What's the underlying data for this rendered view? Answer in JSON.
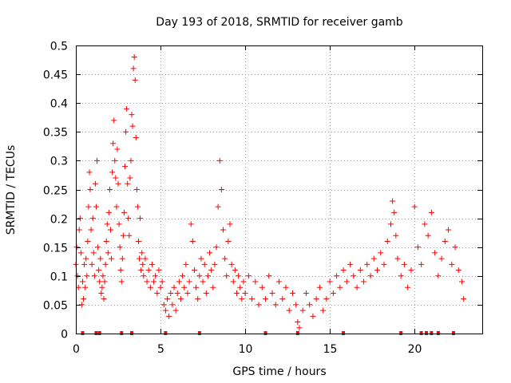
{
  "chart_data": {
    "type": "scatter",
    "title": "Day 193 of 2018, SRMTID for receiver gamb",
    "xlabel": "GPS time / hours",
    "ylabel": "SRMTID / TECUs",
    "xlim": [
      0,
      24
    ],
    "ylim": [
      0,
      0.5
    ],
    "grid": true,
    "x_ticks": [
      0,
      5,
      10,
      15,
      20
    ],
    "x_tick_labels": [
      "0",
      "5",
      "10",
      "15",
      "20"
    ],
    "y_ticks": [
      0,
      0.05,
      0.1,
      0.15,
      0.2,
      0.25,
      0.3,
      0.35,
      0.4,
      0.45,
      0.5
    ],
    "y_tick_labels": [
      "0",
      "0.05",
      "0.1",
      "0.15",
      "0.2",
      "0.25",
      "0.3",
      "0.35",
      "0.4",
      "0.45",
      "0.5"
    ],
    "series": [
      {
        "name": "SRMTID",
        "color": "#ff0000",
        "marker": "plus",
        "points": [
          [
            0.0,
            0.12
          ],
          [
            0.05,
            0.15
          ],
          [
            0.1,
            0.1
          ],
          [
            0.15,
            0.08
          ],
          [
            0.2,
            0.18
          ],
          [
            0.25,
            0.2
          ],
          [
            0.3,
            0.14
          ],
          [
            0.35,
            0.05
          ],
          [
            0.4,
            0.09
          ],
          [
            0.45,
            0.06
          ],
          [
            0.5,
            0.12
          ],
          [
            0.55,
            0.08
          ],
          [
            0.6,
            0.13
          ],
          [
            0.65,
            0.1
          ],
          [
            0.7,
            0.16
          ],
          [
            0.75,
            0.22
          ],
          [
            0.8,
            0.28
          ],
          [
            0.85,
            0.25
          ],
          [
            0.9,
            0.18
          ],
          [
            0.95,
            0.12
          ],
          [
            1.0,
            0.2
          ],
          [
            1.05,
            0.14
          ],
          [
            1.1,
            0.1
          ],
          [
            1.15,
            0.26
          ],
          [
            1.2,
            0.22
          ],
          [
            1.25,
            0.3
          ],
          [
            1.3,
            0.15
          ],
          [
            1.35,
            0.11
          ],
          [
            1.4,
            0.09
          ],
          [
            1.45,
            0.13
          ],
          [
            1.5,
            0.07
          ],
          [
            1.55,
            0.08
          ],
          [
            1.6,
            0.1
          ],
          [
            1.65,
            0.06
          ],
          [
            1.7,
            0.09
          ],
          [
            1.75,
            0.12
          ],
          [
            1.8,
            0.16
          ],
          [
            1.85,
            0.19
          ],
          [
            1.9,
            0.14
          ],
          [
            1.95,
            0.21
          ],
          [
            2.0,
            0.25
          ],
          [
            2.05,
            0.18
          ],
          [
            2.1,
            0.13
          ],
          [
            2.15,
            0.28
          ],
          [
            2.2,
            0.33
          ],
          [
            2.25,
            0.37
          ],
          [
            2.3,
            0.3
          ],
          [
            2.35,
            0.27
          ],
          [
            2.4,
            0.22
          ],
          [
            2.45,
            0.32
          ],
          [
            2.5,
            0.26
          ],
          [
            2.55,
            0.19
          ],
          [
            2.6,
            0.15
          ],
          [
            2.65,
            0.11
          ],
          [
            2.7,
            0.09
          ],
          [
            2.75,
            0.13
          ],
          [
            2.8,
            0.17
          ],
          [
            2.85,
            0.21
          ],
          [
            2.9,
            0.29
          ],
          [
            2.95,
            0.35
          ],
          [
            3.0,
            0.39
          ],
          [
            3.05,
            0.26
          ],
          [
            3.1,
            0.2
          ],
          [
            3.15,
            0.17
          ],
          [
            3.2,
            0.27
          ],
          [
            3.25,
            0.3
          ],
          [
            3.3,
            0.38
          ],
          [
            3.35,
            0.36
          ],
          [
            3.4,
            0.46
          ],
          [
            3.45,
            0.48
          ],
          [
            3.5,
            0.44
          ],
          [
            3.55,
            0.34
          ],
          [
            3.6,
            0.25
          ],
          [
            3.65,
            0.22
          ],
          [
            3.7,
            0.16
          ],
          [
            3.75,
            0.13
          ],
          [
            3.8,
            0.2
          ],
          [
            3.85,
            0.11
          ],
          [
            3.9,
            0.14
          ],
          [
            3.95,
            0.12
          ],
          [
            4.0,
            0.1
          ],
          [
            4.1,
            0.13
          ],
          [
            4.2,
            0.09
          ],
          [
            4.3,
            0.11
          ],
          [
            4.4,
            0.08
          ],
          [
            4.5,
            0.12
          ],
          [
            4.6,
            0.09
          ],
          [
            4.7,
            0.1
          ],
          [
            4.8,
            0.07
          ],
          [
            4.9,
            0.11
          ],
          [
            5.0,
            0.08
          ],
          [
            5.1,
            0.09
          ],
          [
            5.2,
            0.05
          ],
          [
            5.3,
            0.04
          ],
          [
            5.4,
            0.06
          ],
          [
            5.5,
            0.03
          ],
          [
            5.6,
            0.07
          ],
          [
            5.7,
            0.05
          ],
          [
            5.8,
            0.08
          ],
          [
            5.9,
            0.04
          ],
          [
            6.0,
            0.07
          ],
          [
            6.1,
            0.09
          ],
          [
            6.2,
            0.06
          ],
          [
            6.3,
            0.1
          ],
          [
            6.4,
            0.08
          ],
          [
            6.5,
            0.12
          ],
          [
            6.6,
            0.07
          ],
          [
            6.7,
            0.09
          ],
          [
            6.8,
            0.19
          ],
          [
            6.9,
            0.16
          ],
          [
            7.0,
            0.11
          ],
          [
            7.1,
            0.08
          ],
          [
            7.2,
            0.06
          ],
          [
            7.3,
            0.1
          ],
          [
            7.4,
            0.13
          ],
          [
            7.5,
            0.09
          ],
          [
            7.6,
            0.12
          ],
          [
            7.7,
            0.07
          ],
          [
            7.8,
            0.1
          ],
          [
            7.9,
            0.14
          ],
          [
            8.0,
            0.11
          ],
          [
            8.1,
            0.08
          ],
          [
            8.2,
            0.12
          ],
          [
            8.3,
            0.15
          ],
          [
            8.4,
            0.22
          ],
          [
            8.5,
            0.3
          ],
          [
            8.6,
            0.25
          ],
          [
            8.7,
            0.18
          ],
          [
            8.8,
            0.13
          ],
          [
            8.9,
            0.1
          ],
          [
            9.0,
            0.16
          ],
          [
            9.1,
            0.19
          ],
          [
            9.2,
            0.12
          ],
          [
            9.3,
            0.09
          ],
          [
            9.4,
            0.11
          ],
          [
            9.5,
            0.07
          ],
          [
            9.6,
            0.1
          ],
          [
            9.7,
            0.08
          ],
          [
            9.8,
            0.06
          ],
          [
            9.9,
            0.09
          ],
          [
            10.0,
            0.07
          ],
          [
            10.2,
            0.1
          ],
          [
            10.4,
            0.06
          ],
          [
            10.6,
            0.09
          ],
          [
            10.8,
            0.05
          ],
          [
            11.0,
            0.08
          ],
          [
            11.2,
            0.06
          ],
          [
            11.4,
            0.1
          ],
          [
            11.6,
            0.07
          ],
          [
            11.8,
            0.05
          ],
          [
            12.0,
            0.09
          ],
          [
            12.2,
            0.06
          ],
          [
            12.4,
            0.08
          ],
          [
            12.6,
            0.04
          ],
          [
            12.8,
            0.07
          ],
          [
            13.0,
            0.05
          ],
          [
            13.1,
            0.02
          ],
          [
            13.2,
            0.01
          ],
          [
            13.4,
            0.04
          ],
          [
            13.6,
            0.07
          ],
          [
            13.8,
            0.05
          ],
          [
            14.0,
            0.03
          ],
          [
            14.2,
            0.06
          ],
          [
            14.4,
            0.08
          ],
          [
            14.6,
            0.04
          ],
          [
            14.8,
            0.06
          ],
          [
            15.0,
            0.09
          ],
          [
            15.2,
            0.07
          ],
          [
            15.4,
            0.1
          ],
          [
            15.6,
            0.08
          ],
          [
            15.8,
            0.11
          ],
          [
            16.0,
            0.09
          ],
          [
            16.2,
            0.12
          ],
          [
            16.4,
            0.1
          ],
          [
            16.6,
            0.08
          ],
          [
            16.8,
            0.11
          ],
          [
            17.0,
            0.09
          ],
          [
            17.2,
            0.12
          ],
          [
            17.4,
            0.1
          ],
          [
            17.6,
            0.13
          ],
          [
            17.8,
            0.11
          ],
          [
            18.0,
            0.14
          ],
          [
            18.2,
            0.12
          ],
          [
            18.4,
            0.16
          ],
          [
            18.6,
            0.19
          ],
          [
            18.7,
            0.23
          ],
          [
            18.8,
            0.21
          ],
          [
            18.9,
            0.17
          ],
          [
            19.0,
            0.13
          ],
          [
            19.2,
            0.1
          ],
          [
            19.4,
            0.12
          ],
          [
            19.6,
            0.08
          ],
          [
            19.8,
            0.11
          ],
          [
            20.0,
            0.22
          ],
          [
            20.2,
            0.15
          ],
          [
            20.4,
            0.12
          ],
          [
            20.6,
            0.19
          ],
          [
            20.8,
            0.17
          ],
          [
            21.0,
            0.21
          ],
          [
            21.2,
            0.14
          ],
          [
            21.4,
            0.1
          ],
          [
            21.6,
            0.13
          ],
          [
            21.8,
            0.16
          ],
          [
            22.0,
            0.18
          ],
          [
            22.2,
            0.12
          ],
          [
            22.4,
            0.15
          ],
          [
            22.6,
            0.11
          ],
          [
            22.8,
            0.09
          ],
          [
            22.9,
            0.06
          ]
        ]
      }
    ],
    "data_gaps_at_zero": [
      0.4,
      1.2,
      1.4,
      2.7,
      3.3,
      5.3,
      7.3,
      11.2,
      13.1,
      15.8,
      19.2,
      20.4,
      20.7,
      21.0,
      21.4,
      22.3
    ]
  }
}
